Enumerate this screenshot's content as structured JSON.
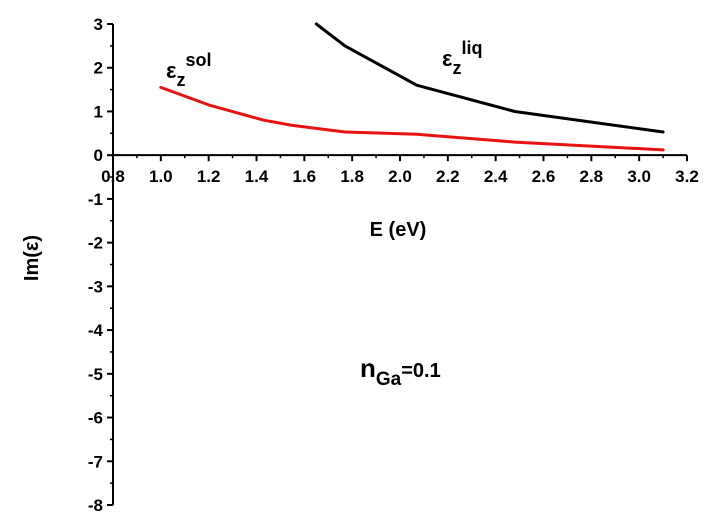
{
  "chart_data": {
    "type": "line",
    "xlabel": "E (eV)",
    "ylabel": "Im(ε)",
    "xlim": [
      0.8,
      3.2
    ],
    "ylim": [
      -8,
      3
    ],
    "xticks": [
      "0.8",
      "1.0",
      "1.2",
      "1.4",
      "1.6",
      "1.8",
      "2.0",
      "2.2",
      "2.4",
      "2.6",
      "2.8",
      "3.0",
      "3.2"
    ],
    "yticks": [
      "3",
      "2",
      "1",
      "0",
      "-1",
      "-2",
      "-3",
      "-4",
      "-5",
      "-6",
      "-7",
      "-8"
    ],
    "series": [
      {
        "name": "ε_z^liq",
        "color": "#000000",
        "x": [
          1.65,
          1.77,
          2.07,
          2.48,
          3.1
        ],
        "y": [
          3.0,
          2.5,
          1.6,
          1.0,
          0.53
        ]
      },
      {
        "name": "ε_z^sol",
        "color": "#e8120e",
        "x": [
          1.0,
          1.2,
          1.43,
          1.55,
          1.77,
          2.07,
          2.48,
          3.1
        ],
        "y": [
          1.55,
          1.15,
          0.8,
          0.68,
          0.53,
          0.48,
          0.3,
          0.12
        ]
      }
    ],
    "annotations": {
      "liq": {
        "base": "ε",
        "sub": "z",
        "sup": "liq"
      },
      "sol": {
        "base": "ε",
        "sub": "z",
        "sup": "sol"
      },
      "note": {
        "main": "n",
        "sub": "Ga",
        "tail": "=0.1"
      }
    }
  }
}
